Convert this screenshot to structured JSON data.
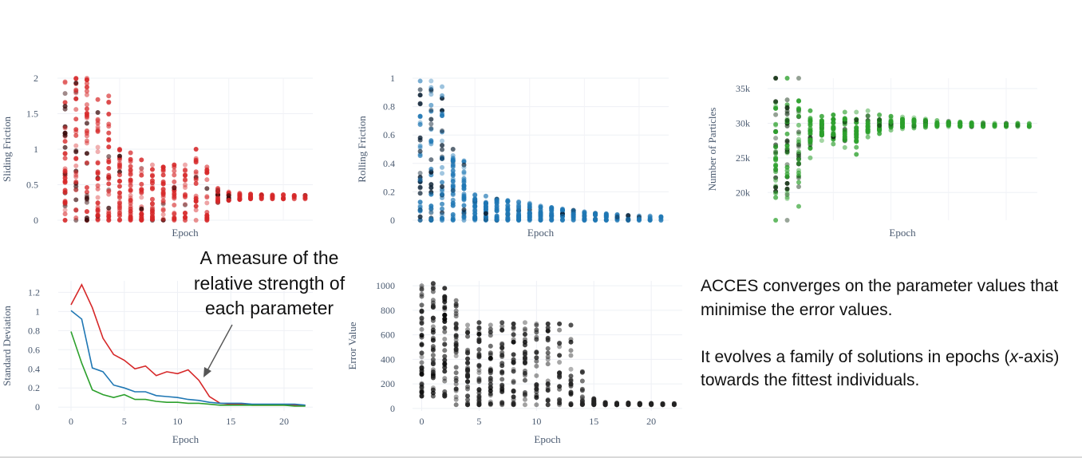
{
  "annotation": {
    "lines": [
      "A measure of the",
      "relative strength of",
      "each parameter"
    ]
  },
  "description": {
    "paragraph1": "ACCES converges on the parameter values that minimise the error values.",
    "paragraph2_prefix": "It evolves a family of solutions in epochs (",
    "paragraph2_italic": "x",
    "paragraph2_suffix": "-axis) towards the fittest individuals."
  },
  "chart_data": [
    {
      "id": "sliding",
      "type": "scatter",
      "xlabel": "Epoch",
      "ylabel": "Sliding Friction",
      "ylim": [
        0,
        2
      ],
      "yticks": [
        0,
        0.5,
        1,
        1.5,
        2
      ],
      "ytick_labels": [
        "0",
        "0.5",
        "1",
        "1.5",
        "2"
      ],
      "xlim": [
        -0.7,
        22.7
      ],
      "show_x_ticks": false,
      "grid": true,
      "color": "#d62728",
      "dark_color": "#3a0a0a",
      "epochs": [
        0,
        1,
        2,
        3,
        4,
        5,
        6,
        7,
        8,
        9,
        10,
        11,
        12,
        13,
        14,
        15,
        16,
        17,
        18,
        19,
        20,
        21,
        22
      ],
      "max_per_epoch": [
        1.95,
        2.0,
        2.0,
        1.7,
        1.75,
        1.0,
        0.95,
        0.85,
        0.78,
        0.75,
        0.78,
        0.78,
        1.0,
        0.75,
        0.45,
        0.4,
        0.38,
        0.37,
        0.36,
        0.36,
        0.36,
        0.35,
        0.35
      ],
      "min_per_epoch": [
        0,
        0,
        0,
        0,
        0,
        0,
        0,
        0,
        0,
        0,
        0,
        0,
        0,
        0,
        0.25,
        0.28,
        0.29,
        0.3,
        0.3,
        0.3,
        0.3,
        0.3,
        0.3
      ]
    },
    {
      "id": "rolling",
      "type": "scatter",
      "xlabel": "Epoch",
      "ylabel": "Rolling Friction",
      "ylim": [
        0,
        1
      ],
      "yticks": [
        0,
        0.2,
        0.4,
        0.6,
        0.8,
        1
      ],
      "ytick_labels": [
        "0",
        "0.2",
        "0.4",
        "0.6",
        "0.8",
        "1"
      ],
      "xlim": [
        -0.7,
        22.7
      ],
      "show_x_ticks": false,
      "grid": true,
      "color": "#1f77b4",
      "dark_color": "#0a1f33",
      "epochs": [
        0,
        1,
        2,
        3,
        4,
        5,
        6,
        7,
        8,
        9,
        10,
        11,
        12,
        13,
        14,
        15,
        16,
        17,
        18,
        19,
        20,
        21,
        22
      ],
      "max_per_epoch": [
        0.98,
        0.98,
        0.94,
        0.5,
        0.42,
        0.18,
        0.17,
        0.15,
        0.14,
        0.13,
        0.12,
        0.1,
        0.09,
        0.08,
        0.07,
        0.06,
        0.05,
        0.045,
        0.04,
        0.035,
        0.03,
        0.03,
        0.025
      ],
      "min_per_epoch": [
        0,
        0,
        0,
        0,
        0,
        0,
        0,
        0,
        0,
        0,
        0,
        0,
        0,
        0,
        0,
        0,
        0,
        0,
        0,
        0,
        0,
        0,
        0
      ]
    },
    {
      "id": "particles",
      "type": "scatter",
      "xlabel": "Epoch",
      "ylabel": "Number of Particles",
      "ylim": [
        16000,
        36500
      ],
      "yticks": [
        20000,
        25000,
        30000,
        35000
      ],
      "ytick_labels": [
        "20k",
        "25k",
        "30k",
        "35k"
      ],
      "xlim": [
        -0.7,
        22.7
      ],
      "show_x_ticks": false,
      "grid": true,
      "color": "#2ca02c",
      "dark_color": "#0b2a0b",
      "epochs": [
        0,
        1,
        2,
        3,
        4,
        5,
        6,
        7,
        8,
        9,
        10,
        11,
        12,
        13,
        14,
        15,
        16,
        17,
        18,
        19,
        20,
        21,
        22
      ],
      "max_per_epoch": [
        36500,
        36500,
        36500,
        31800,
        31000,
        31200,
        31600,
        31600,
        31800,
        31200,
        31000,
        30900,
        30800,
        30600,
        30400,
        30300,
        30200,
        30100,
        30100,
        30000,
        30000,
        30000,
        30000
      ],
      "min_per_epoch": [
        16000,
        16000,
        18000,
        25000,
        27500,
        27000,
        26500,
        25500,
        28000,
        28500,
        29000,
        29200,
        29300,
        29400,
        29500,
        29500,
        29500,
        29500,
        29500,
        29500,
        29500,
        29500,
        29500
      ]
    },
    {
      "id": "stddev",
      "type": "line",
      "xlabel": "Epoch",
      "ylabel": "Standard Deviation",
      "ylim": [
        -0.04,
        1.32
      ],
      "yticks": [
        0,
        0.2,
        0.4,
        0.6,
        0.8,
        1,
        1.2
      ],
      "ytick_labels": [
        "0",
        "0.2",
        "0.4",
        "0.6",
        "0.8",
        "1",
        "1.2"
      ],
      "xlim": [
        -1.2,
        22.7
      ],
      "xticks": [
        0,
        5,
        10,
        15,
        20
      ],
      "xtick_labels": [
        "0",
        "5",
        "10",
        "15",
        "20"
      ],
      "show_x_ticks": true,
      "grid": true,
      "x": [
        0,
        1,
        2,
        3,
        4,
        5,
        6,
        7,
        8,
        9,
        10,
        11,
        12,
        13,
        14,
        15,
        16,
        17,
        18,
        19,
        20,
        21,
        22
      ],
      "series": [
        {
          "color": "#d62728",
          "values": [
            1.07,
            1.28,
            1.04,
            0.72,
            0.55,
            0.49,
            0.4,
            0.43,
            0.33,
            0.37,
            0.35,
            0.39,
            0.28,
            0.11,
            0.04,
            0.03,
            0.03,
            0.02,
            0.02,
            0.02,
            0.02,
            0.02,
            0.02
          ]
        },
        {
          "color": "#1f77b4",
          "values": [
            1.01,
            0.92,
            0.41,
            0.37,
            0.23,
            0.2,
            0.16,
            0.16,
            0.12,
            0.11,
            0.1,
            0.08,
            0.07,
            0.05,
            0.04,
            0.04,
            0.04,
            0.03,
            0.03,
            0.03,
            0.03,
            0.03,
            0.02
          ]
        },
        {
          "color": "#2ca02c",
          "values": [
            0.79,
            0.46,
            0.18,
            0.13,
            0.1,
            0.13,
            0.08,
            0.08,
            0.06,
            0.05,
            0.05,
            0.04,
            0.04,
            0.03,
            0.02,
            0.02,
            0.02,
            0.02,
            0.02,
            0.02,
            0.02,
            0.01,
            0.01
          ]
        }
      ]
    },
    {
      "id": "error",
      "type": "scatter",
      "xlabel": "Epoch",
      "ylabel": "Error Value",
      "ylim": [
        -20,
        1040
      ],
      "yticks": [
        0,
        200,
        400,
        600,
        800,
        1000
      ],
      "ytick_labels": [
        "0",
        "200",
        "400",
        "600",
        "800",
        "1000"
      ],
      "xlim": [
        -0.8,
        22.7
      ],
      "xticks": [
        0,
        5,
        10,
        15,
        20
      ],
      "xtick_labels": [
        "0",
        "5",
        "10",
        "15",
        "20"
      ],
      "show_x_ticks": true,
      "grid": true,
      "color": "#222222",
      "dark_color": "#000000",
      "epochs": [
        0,
        1,
        2,
        3,
        4,
        5,
        6,
        7,
        8,
        9,
        10,
        11,
        12,
        13,
        14,
        15,
        16,
        17,
        18,
        19,
        20,
        21,
        22
      ],
      "max_per_epoch": [
        1000,
        1020,
        980,
        880,
        680,
        700,
        680,
        700,
        690,
        700,
        690,
        690,
        690,
        680,
        300,
        80,
        50,
        45,
        45,
        42,
        42,
        40,
        40
      ],
      "min_per_epoch": [
        100,
        100,
        100,
        30,
        30,
        30,
        30,
        30,
        30,
        30,
        30,
        30,
        30,
        30,
        30,
        30,
        30,
        30,
        30,
        30,
        30,
        30,
        30
      ]
    }
  ]
}
